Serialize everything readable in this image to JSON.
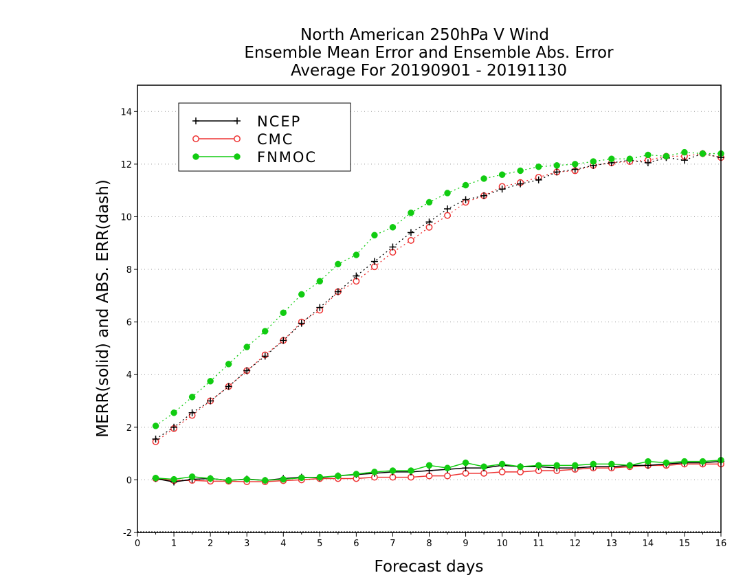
{
  "chart_data": {
    "type": "line",
    "title": [
      "North American 250hPa V Wind",
      "Ensemble Mean Error and Ensemble Abs. Error",
      "Average For 20190901 - 20191130"
    ],
    "xlabel": "Forecast days",
    "ylabel": "MERR(solid) and ABS. ERR(dash)",
    "xlim": [
      0,
      16
    ],
    "ylim": [
      -2,
      15
    ],
    "x_ticks": [
      "0",
      "1",
      "2",
      "3",
      "4",
      "5",
      "6",
      "7",
      "8",
      "9",
      "10",
      "11",
      "12",
      "13",
      "14",
      "15",
      "16"
    ],
    "y_ticks": [
      "-2",
      "0",
      "2",
      "4",
      "6",
      "8",
      "10",
      "12",
      "14"
    ],
    "grid": "horizontal dotted",
    "legend_position": "top-left",
    "x": [
      0.5,
      1,
      1.5,
      2,
      2.5,
      3,
      3.5,
      4,
      4.5,
      5,
      5.5,
      6,
      6.5,
      7,
      7.5,
      8,
      8.5,
      9,
      9.5,
      10,
      10.5,
      11,
      11.5,
      12,
      12.5,
      13,
      13.5,
      14,
      14.5,
      15,
      15.5,
      16
    ],
    "series": [
      {
        "name": "NCEP",
        "color": "#000000",
        "marker": "plus",
        "merr": [
          0.05,
          -0.08,
          0.02,
          0.05,
          -0.02,
          0.03,
          -0.02,
          0.05,
          0.1,
          0.08,
          0.15,
          0.2,
          0.25,
          0.3,
          0.3,
          0.35,
          0.4,
          0.45,
          0.45,
          0.55,
          0.5,
          0.5,
          0.45,
          0.45,
          0.5,
          0.5,
          0.55,
          0.55,
          0.6,
          0.65,
          0.65,
          0.7
        ],
        "abs_err": [
          1.55,
          2.0,
          2.55,
          3.0,
          3.55,
          4.15,
          4.7,
          5.3,
          5.95,
          6.55,
          7.15,
          7.75,
          8.3,
          8.85,
          9.4,
          9.8,
          10.3,
          10.65,
          10.8,
          11.05,
          11.25,
          11.4,
          11.7,
          11.8,
          11.95,
          12.05,
          12.15,
          12.05,
          12.25,
          12.15,
          12.4,
          12.25
        ]
      },
      {
        "name": "CMC",
        "color": "#ee3333",
        "marker": "open-circle",
        "merr": [
          0.05,
          -0.03,
          -0.02,
          -0.05,
          -0.05,
          -0.07,
          -0.07,
          -0.03,
          0.0,
          0.05,
          0.05,
          0.05,
          0.1,
          0.1,
          0.1,
          0.15,
          0.15,
          0.25,
          0.25,
          0.3,
          0.3,
          0.35,
          0.35,
          0.4,
          0.45,
          0.45,
          0.5,
          0.55,
          0.55,
          0.6,
          0.6,
          0.6
        ],
        "abs_err": [
          1.45,
          1.95,
          2.45,
          3.0,
          3.55,
          4.15,
          4.75,
          5.3,
          6.0,
          6.45,
          7.15,
          7.55,
          8.1,
          8.65,
          9.1,
          9.6,
          10.05,
          10.55,
          10.8,
          11.15,
          11.3,
          11.5,
          11.7,
          11.75,
          11.95,
          12.05,
          12.1,
          12.15,
          12.3,
          12.3,
          12.4,
          12.25
        ]
      },
      {
        "name": "FNMOC",
        "color": "#11cc11",
        "marker": "filled-circle",
        "merr": [
          0.07,
          0.02,
          0.12,
          0.05,
          -0.02,
          0.02,
          -0.02,
          0.02,
          0.08,
          0.1,
          0.15,
          0.22,
          0.3,
          0.35,
          0.35,
          0.55,
          0.45,
          0.65,
          0.5,
          0.6,
          0.5,
          0.55,
          0.55,
          0.55,
          0.6,
          0.6,
          0.55,
          0.7,
          0.65,
          0.7,
          0.7,
          0.75
        ],
        "abs_err": [
          2.05,
          2.55,
          3.15,
          3.75,
          4.4,
          5.05,
          5.65,
          6.35,
          7.05,
          7.55,
          8.2,
          8.55,
          9.3,
          9.6,
          10.15,
          10.55,
          10.9,
          11.2,
          11.45,
          11.6,
          11.75,
          11.9,
          11.95,
          12.0,
          12.1,
          12.2,
          12.2,
          12.35,
          12.3,
          12.45,
          12.4,
          12.4
        ]
      }
    ]
  }
}
